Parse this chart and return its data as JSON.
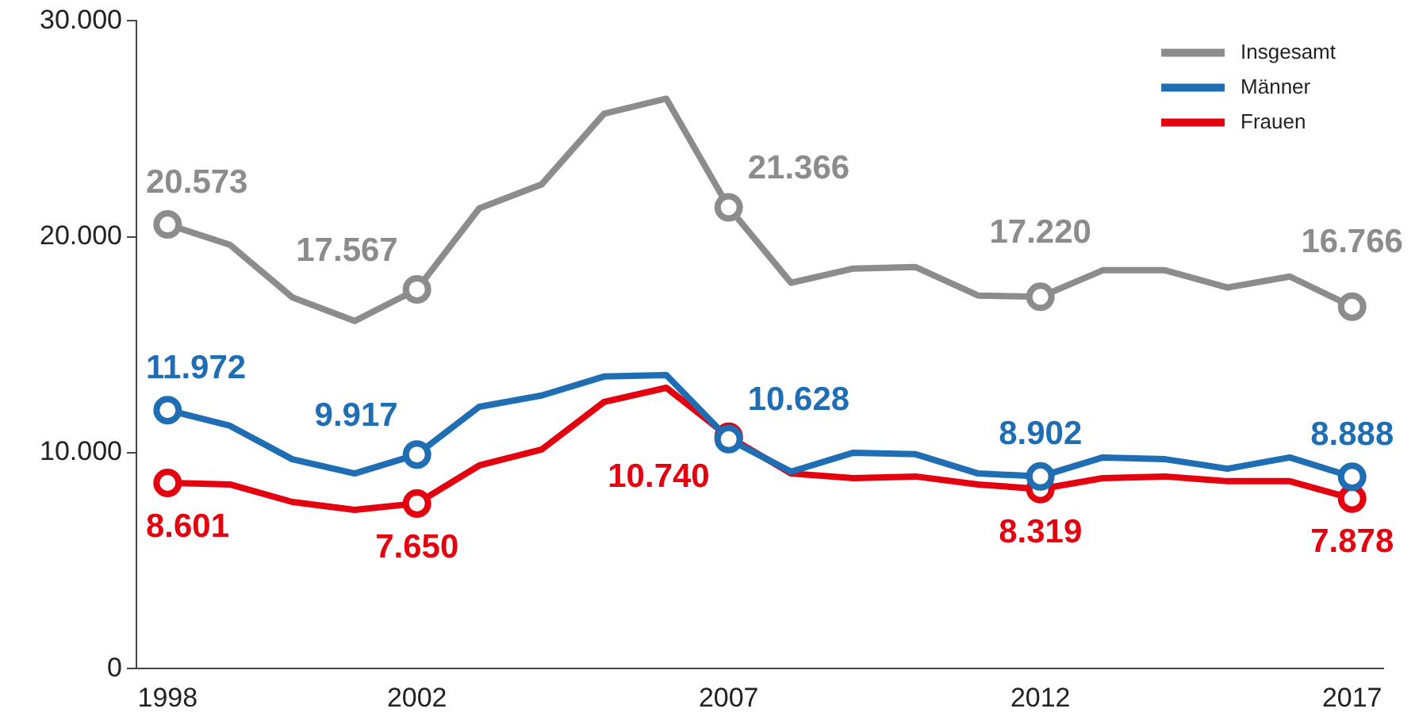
{
  "chart_data": {
    "type": "line",
    "categories": [
      "1998",
      null,
      null,
      null,
      "2002",
      null,
      null,
      null,
      null,
      "2007",
      null,
      null,
      null,
      null,
      "2012",
      null,
      null,
      null,
      null,
      "2017"
    ],
    "ylim": [
      0,
      30000
    ],
    "yticks": [
      {
        "value": 0,
        "label": "0"
      },
      {
        "value": 10000,
        "label": "10.000"
      },
      {
        "value": 20000,
        "label": "20.000"
      },
      {
        "value": 30000,
        "label": "30.000"
      }
    ],
    "grid": false,
    "legend": "top right",
    "line_style": "solid",
    "series": [
      {
        "name": "Insgesamt",
        "color": "#8c8c8c",
        "values": [
          20573,
          19630,
          17200,
          16100,
          17567,
          21320,
          22430,
          25700,
          26400,
          21366,
          17870,
          18530,
          18600,
          17280,
          17220,
          18450,
          18450,
          17650,
          18160,
          16766
        ],
        "value_labels": [
          "20.573",
          null,
          null,
          null,
          "17.567",
          null,
          null,
          null,
          null,
          "21.366",
          null,
          null,
          null,
          null,
          "17.220",
          null,
          null,
          null,
          null,
          "16.766"
        ]
      },
      {
        "name": "Männer",
        "color": "#1f6eb4",
        "values": [
          11972,
          11250,
          9700,
          9040,
          9917,
          12130,
          12650,
          13530,
          13600,
          10628,
          9120,
          10000,
          9930,
          9040,
          8902,
          9780,
          9700,
          9260,
          9780,
          8888
        ],
        "value_labels": [
          "11.972",
          null,
          null,
          null,
          "9.917",
          null,
          null,
          null,
          null,
          "10.628",
          null,
          null,
          null,
          null,
          "8.902",
          null,
          null,
          null,
          null,
          "8.888"
        ]
      },
      {
        "name": "Frauen",
        "color": "#e3000f",
        "values": [
          8601,
          8530,
          7720,
          7350,
          7650,
          9410,
          10150,
          12350,
          13010,
          10740,
          9040,
          8820,
          8900,
          8530,
          8319,
          8820,
          8900,
          8680,
          8680,
          7878
        ],
        "value_labels": [
          "8.601",
          null,
          null,
          null,
          "7.650",
          null,
          null,
          null,
          null,
          "10.740",
          null,
          null,
          null,
          null,
          "8.319",
          null,
          null,
          null,
          null,
          "7.878"
        ]
      }
    ]
  }
}
